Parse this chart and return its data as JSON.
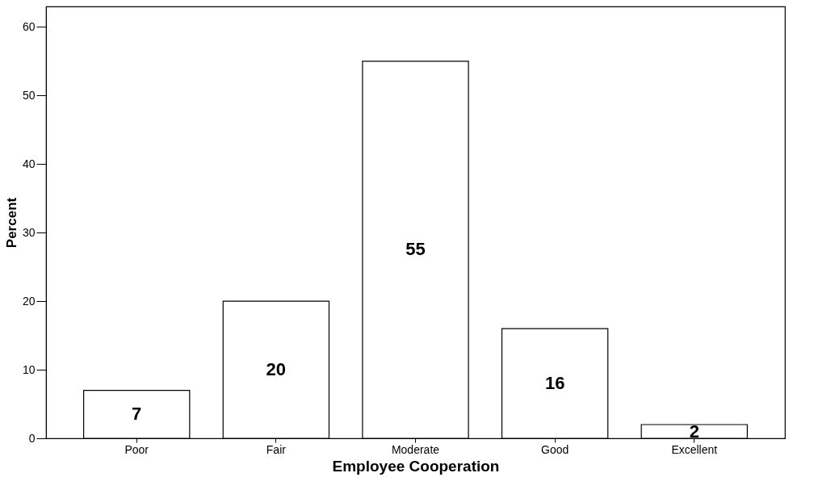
{
  "chart_data": {
    "type": "bar",
    "xlabel": "Employee Cooperation",
    "ylabel": "Percent",
    "categories": [
      "Poor",
      "Fair",
      "Moderate",
      "Good",
      "Excellent"
    ],
    "values": [
      7,
      20,
      55,
      16,
      2
    ],
    "color": "#ffffff",
    "ylim": [
      0,
      63
    ],
    "yticks": [
      0,
      10,
      20,
      30,
      40,
      50,
      60
    ],
    "grid": false,
    "data_labels": true
  }
}
